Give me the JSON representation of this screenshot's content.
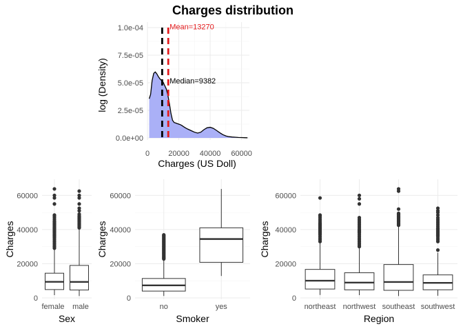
{
  "title": "Charges distribution",
  "colors": {
    "density_fill": "#aab0f7",
    "density_line": "#000000",
    "mean_line": "#e41a1c",
    "median_line": "#000000",
    "box_line": "#333333",
    "grid": "#ebebeb"
  },
  "chart_data": [
    {
      "id": "density",
      "type": "area",
      "title": "Charges distribution",
      "xlabel": "Charges (US Doll)",
      "ylabel": "log (Density)",
      "xlim": [
        0,
        65000
      ],
      "ylim": [
        0,
        0.0001
      ],
      "x_ticks": [
        0,
        20000,
        40000,
        60000
      ],
      "x_tick_labels": [
        "0",
        "20000",
        "40000",
        "60000"
      ],
      "y_ticks": [
        0,
        2.5e-05,
        5e-05,
        7.5e-05,
        0.0001
      ],
      "y_tick_labels": [
        "0.0e+00",
        "2.5e-05",
        "5.0e-05",
        "7.5e-05",
        "1.0e-04"
      ],
      "grid": true,
      "x": [
        1122,
        2000,
        3000,
        4000,
        5000,
        6000,
        7000,
        8000,
        9000,
        10000,
        11000,
        12000,
        13000,
        14000,
        15000,
        16000,
        17000,
        18000,
        19000,
        20000,
        21000,
        22000,
        23000,
        24000,
        25000,
        26000,
        28000,
        30000,
        32000,
        34000,
        36000,
        38000,
        40000,
        42000,
        44000,
        46000,
        48000,
        50000,
        52000,
        54000,
        56000,
        58000,
        60000,
        62000,
        63770
      ],
      "y": [
        3.55e-05,
        3.95e-05,
        5.2e-05,
        5.85e-05,
        5.98e-05,
        5.8e-05,
        5.55e-05,
        5.35e-05,
        5.2e-05,
        5.05e-05,
        4.75e-05,
        4.45e-05,
        3.9e-05,
        3.1e-05,
        2.2e-05,
        1.6e-05,
        1.4e-05,
        1.35e-05,
        1.3e-05,
        1.25e-05,
        1.2e-05,
        1.12e-05,
        1.02e-05,
        9.3e-06,
        8.5e-06,
        7.8e-06,
        6.5e-06,
        5.2e-06,
        4.4e-06,
        5.2e-06,
        7.5e-06,
        9.2e-06,
        9.6e-06,
        8.7e-06,
        6.8e-06,
        4.8e-06,
        3e-06,
        1.8e-06,
        1.1e-06,
        8e-07,
        6e-07,
        4e-07,
        3e-07,
        2e-07,
        1e-07
      ],
      "vlines": [
        {
          "name": "mean",
          "x": 13270,
          "label": "Mean=13270",
          "label_y": 9.85e-05
        },
        {
          "name": "median",
          "x": 9382,
          "label": "Median=9382",
          "label_y": 4.95e-05
        }
      ]
    },
    {
      "id": "sex",
      "type": "box",
      "xlabel": "Sex",
      "ylabel": "Charges",
      "ylim": [
        0,
        67000
      ],
      "y_ticks": [
        0,
        20000,
        40000,
        60000
      ],
      "y_tick_labels": [
        "0",
        "20000",
        "40000",
        "60000"
      ],
      "grid": true,
      "categories": [
        "female",
        "male"
      ],
      "boxes": [
        {
          "category": "female",
          "lower_whisker": 1608,
          "q1": 4885,
          "median": 9413,
          "q3": 14455,
          "upper_whisker": 28950,
          "outliers": [
            29100,
            30000,
            31000,
            32000,
            33000,
            34000,
            35000,
            35500,
            36000,
            36500,
            37000,
            37500,
            38000,
            38500,
            39000,
            39500,
            40000,
            40500,
            41000,
            41500,
            42000,
            42500,
            43000,
            43500,
            44000,
            44500,
            45000,
            46000,
            47000,
            48000,
            48500,
            55000,
            58500,
            60000,
            63800
          ]
        },
        {
          "category": "male",
          "lower_whisker": 1122,
          "q1": 4619,
          "median": 9370,
          "q3": 19007,
          "upper_whisker": 40500,
          "outliers": [
            41000,
            41500,
            42000,
            42500,
            43000,
            43500,
            44000,
            44500,
            45000,
            45500,
            46000,
            46500,
            47000,
            47500,
            48000,
            49000,
            51000,
            52500,
            55000,
            58500,
            60000,
            62500
          ]
        }
      ]
    },
    {
      "id": "smoker",
      "type": "box",
      "xlabel": "Smoker",
      "ylabel": "Charges",
      "ylim": [
        0,
        67000
      ],
      "y_ticks": [
        0,
        20000,
        40000,
        60000
      ],
      "y_tick_labels": [
        "0",
        "20000",
        "40000",
        "60000"
      ],
      "grid": true,
      "categories": [
        "no",
        "yes"
      ],
      "boxes": [
        {
          "category": "no",
          "lower_whisker": 1122,
          "q1": 3986,
          "median": 7345,
          "q3": 11363,
          "upper_whisker": 22400,
          "outliers": [
            22800,
            23200,
            23600,
            24000,
            24500,
            25000,
            25500,
            26000,
            26500,
            27000,
            27500,
            28000,
            28500,
            29000,
            29500,
            30000,
            30500,
            31000,
            31500,
            32000,
            32500,
            33000,
            33500,
            34000,
            34500,
            35000,
            35500,
            36000,
            36500,
            36900
          ]
        },
        {
          "category": "yes",
          "lower_whisker": 12829,
          "q1": 20826,
          "median": 34456,
          "q3": 41019,
          "upper_whisker": 63770,
          "outliers": []
        }
      ]
    },
    {
      "id": "region",
      "type": "box",
      "xlabel": "Region",
      "ylabel": "Charges",
      "ylim": [
        0,
        67000
      ],
      "y_ticks": [
        0,
        20000,
        40000,
        60000
      ],
      "y_tick_labels": [
        "0",
        "20000",
        "40000",
        "60000"
      ],
      "grid": true,
      "categories": [
        "northeast",
        "northwest",
        "southeast",
        "southwest"
      ],
      "boxes": [
        {
          "category": "northeast",
          "lower_whisker": 1695,
          "q1": 5194,
          "median": 10058,
          "q3": 16687,
          "upper_whisker": 32000,
          "outliers": [
            33000,
            34000,
            35000,
            36000,
            37000,
            37500,
            38000,
            38500,
            39000,
            39500,
            40000,
            40500,
            41000,
            41500,
            42000,
            42500,
            43000,
            43500,
            44000,
            45000,
            46000,
            47000,
            48000,
            48500,
            58500
          ]
        },
        {
          "category": "northwest",
          "lower_whisker": 1621,
          "q1": 4720,
          "median": 8965,
          "q3": 14712,
          "upper_whisker": 29000,
          "outliers": [
            30000,
            31000,
            32000,
            33000,
            34000,
            35000,
            36000,
            37000,
            38000,
            38500,
            39000,
            39500,
            40000,
            41000,
            42000,
            43000,
            44000,
            45000,
            46000,
            47000,
            55000,
            58000,
            60000
          ]
        },
        {
          "category": "southeast",
          "lower_whisker": 1122,
          "q1": 4441,
          "median": 9294,
          "q3": 19526,
          "upper_whisker": 42000,
          "outliers": [
            42500,
            43000,
            43500,
            44000,
            44500,
            45000,
            45500,
            46000,
            46500,
            47000,
            47500,
            48000,
            48500,
            49000,
            49500,
            52000,
            62500,
            63800
          ]
        },
        {
          "category": "southwest",
          "lower_whisker": 1242,
          "q1": 4751,
          "median": 8798,
          "q3": 13463,
          "upper_whisker": 26500,
          "outliers": [
            28000,
            33000,
            34000,
            35000,
            36000,
            36500,
            37000,
            37500,
            38000,
            38500,
            39000,
            39500,
            40000,
            40500,
            41000,
            42000,
            43000,
            44000,
            45000,
            46000,
            47000,
            48500,
            50000,
            51000,
            52500
          ]
        }
      ]
    }
  ]
}
